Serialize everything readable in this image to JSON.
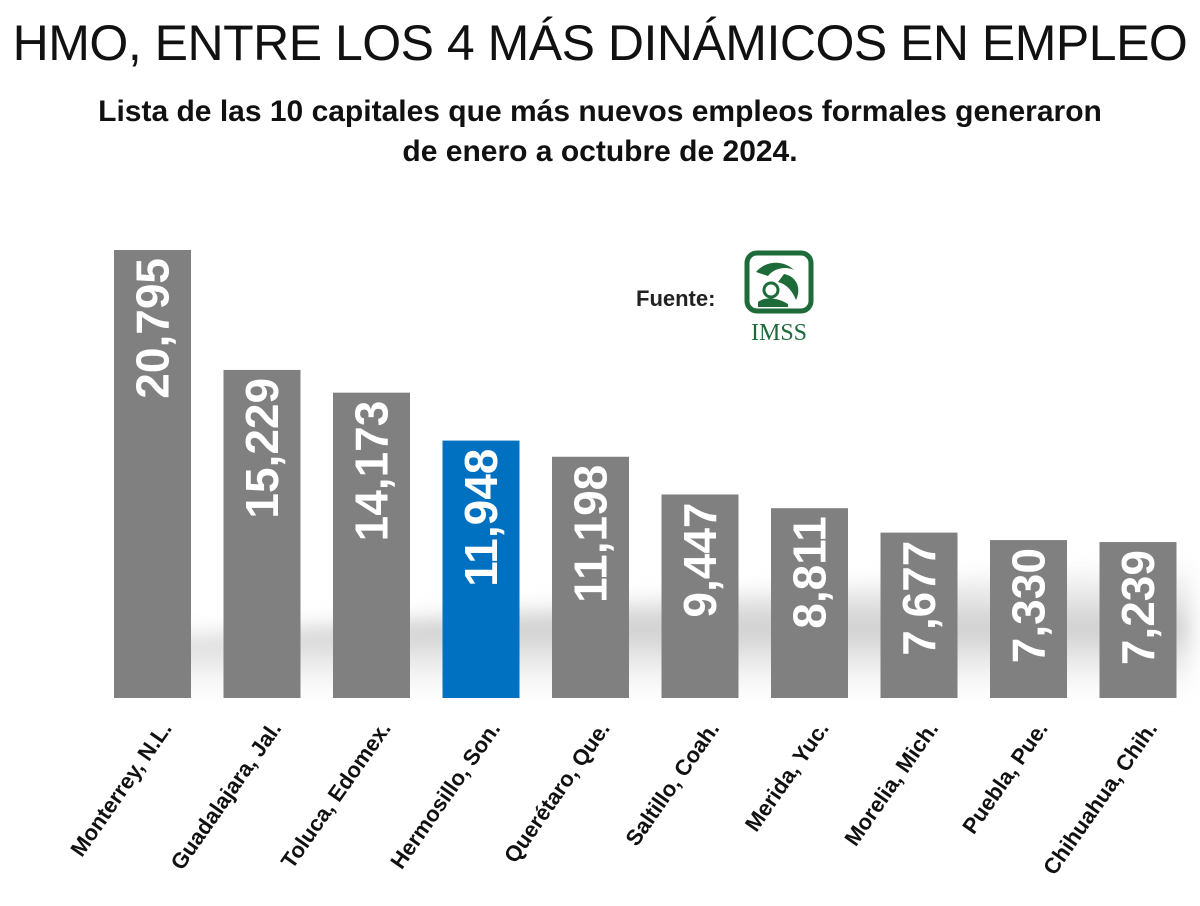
{
  "header": {
    "title": "HMO, ENTRE LOS 4 MÁS DINÁMICOS EN EMPLEO",
    "subtitle_line1": "Lista de las 10 capitales que más nuevos empleos formales generaron",
    "subtitle_line2": "de enero a octubre de 2024."
  },
  "source": {
    "label": "Fuente:",
    "logo_text": "IMSS",
    "logo_name": "imss-logo"
  },
  "colors": {
    "bar": "#808080",
    "highlight": "#0070c0",
    "value_text": "#ffffff",
    "label_text": "#111111",
    "logo": "#1e6b3a"
  },
  "chart_data": {
    "type": "bar",
    "title": "Lista de las 10 capitales que más nuevos empleos formales generaron de enero a octubre de 2024.",
    "categories": [
      "Monterrey, N.L.",
      "Guadalajara, Jal.",
      "Toluca, Edomex.",
      "Hermosillo, Son.",
      "Querétaro, Que.",
      "Saltillo, Coah.",
      "Merida, Yuc.",
      "Morelia, Mich.",
      "Puebla, Pue.",
      "Chihuahua, Chih."
    ],
    "values": [
      20795,
      15229,
      14173,
      11948,
      11198,
      9447,
      8811,
      7677,
      7330,
      7239
    ],
    "value_labels": [
      "20,795",
      "15,229",
      "14,173",
      "11,948",
      "11,198",
      "9,447",
      "8,811",
      "7,677",
      "7,330",
      "7,239"
    ],
    "highlight": "Hermosillo, Son.",
    "xlabel": "",
    "ylabel": "",
    "ylim": [
      0,
      20795
    ],
    "grid": false,
    "legend": "none"
  }
}
